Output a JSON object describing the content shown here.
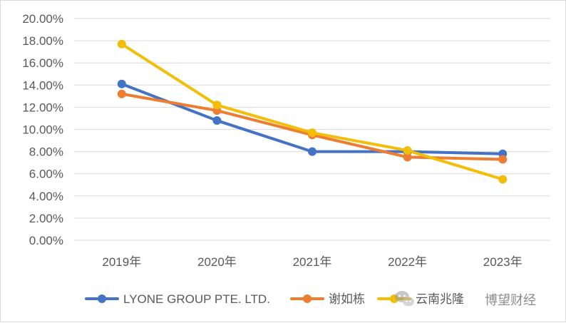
{
  "chart_data": {
    "type": "line",
    "title": "",
    "xlabel": "",
    "ylabel": "",
    "categories": [
      "2019年",
      "2020年",
      "2021年",
      "2022年",
      "2023年"
    ],
    "ylim": [
      0,
      20
    ],
    "ytick_step": 2,
    "ytick_labels": [
      "0.00%",
      "2.00%",
      "4.00%",
      "6.00%",
      "8.00%",
      "10.00%",
      "12.00%",
      "14.00%",
      "16.00%",
      "18.00%",
      "20.00%"
    ],
    "grid": true,
    "legend_position": "bottom",
    "series": [
      {
        "name": "LYONE GROUP PTE. LTD.",
        "color": "#4472C4",
        "values": [
          14.1,
          10.8,
          8.0,
          8.0,
          7.8
        ]
      },
      {
        "name": "谢如栋",
        "color": "#ED7D31",
        "values": [
          13.2,
          11.7,
          9.5,
          7.5,
          7.3
        ]
      },
      {
        "name": "云南兆隆",
        "color": "#F2BE0A",
        "values": [
          17.7,
          12.2,
          9.7,
          8.1,
          5.5
        ]
      }
    ]
  },
  "watermark": {
    "text": "博望财经",
    "icon": "wechat-icon"
  }
}
